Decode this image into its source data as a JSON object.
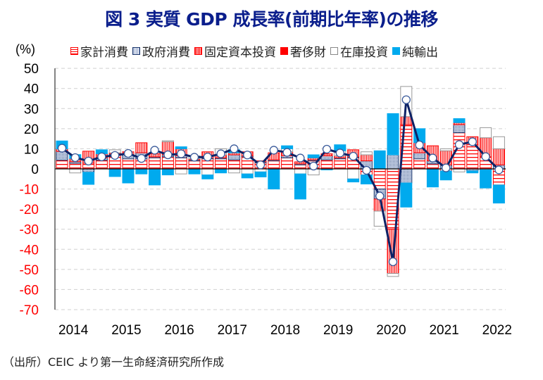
{
  "title": "図 3  実質 GDP 成長率(前期比年率)の推移",
  "source_note": "（出所）CEIC より第一生命経済研究所作成",
  "chart_data": {
    "type": "bar",
    "subtype": "stacked-bar-with-line",
    "title": "図 3  実質 GDP 成長率(前期比年率)の推移",
    "ylabel": "(%)",
    "xlabel": "",
    "ylim": [
      -70,
      50
    ],
    "yticks": [
      50,
      40,
      30,
      20,
      10,
      0,
      -10,
      -20,
      -30,
      -40,
      -50,
      -60,
      -70
    ],
    "negative_tick_color": "#ff0000",
    "grid": "horizontal dashed",
    "legend_position": "top",
    "x_tick_labels": [
      "2014",
      "2015",
      "2016",
      "2017",
      "2018",
      "2019",
      "2020",
      "2021",
      "2022"
    ],
    "categories": [
      "2014Q1",
      "2014Q2",
      "2014Q3",
      "2014Q4",
      "2015Q1",
      "2015Q2",
      "2015Q3",
      "2015Q4",
      "2016Q1",
      "2016Q2",
      "2016Q3",
      "2016Q4",
      "2017Q1",
      "2017Q2",
      "2017Q3",
      "2017Q4",
      "2018Q1",
      "2018Q2",
      "2018Q3",
      "2018Q4",
      "2019Q1",
      "2019Q2",
      "2019Q3",
      "2019Q4",
      "2020Q1",
      "2020Q2",
      "2020Q3",
      "2020Q4",
      "2021Q1",
      "2021Q2",
      "2021Q3",
      "2021Q4",
      "2022Q1",
      "2022Q2"
    ],
    "series": [
      {
        "name": "家計消費",
        "key": "hh",
        "values": [
          4.3,
          2.8,
          2.8,
          4.3,
          7.0,
          5.0,
          5.0,
          5.5,
          6.0,
          5.5,
          4.0,
          5.0,
          5.0,
          4.5,
          6.0,
          3.0,
          4.0,
          5.5,
          2.0,
          4.0,
          4.5,
          5.0,
          5.5,
          -3.0,
          -10.0,
          -30.0,
          22.0,
          5.0,
          2.5,
          -1.0,
          18.0,
          12.0,
          6.0,
          -8.0
        ]
      },
      {
        "name": "政府消費",
        "key": "gov",
        "values": [
          4.4,
          0.8,
          -1.7,
          1.2,
          0.5,
          2.0,
          3.0,
          0.5,
          1.0,
          1.0,
          0.5,
          0.5,
          0.5,
          2.5,
          0.5,
          0.5,
          0.5,
          1.0,
          0.5,
          0.5,
          2.0,
          0.5,
          0.5,
          4.0,
          -5.0,
          7.0,
          -7.0,
          3.0,
          1.5,
          2.0,
          4.0,
          -1.0,
          -0.5,
          2.0
        ]
      },
      {
        "name": "固定資本投資",
        "key": "fix",
        "values": [
          1.2,
          1.5,
          6.0,
          2.0,
          0.5,
          1.5,
          5.0,
          1.5,
          6.5,
          3.5,
          0.5,
          3.0,
          1.5,
          1.0,
          2.0,
          0.5,
          3.5,
          2.0,
          1.0,
          1.0,
          1.0,
          1.0,
          3.5,
          3.0,
          -6.0,
          -22.0,
          4.0,
          5.0,
          7.5,
          7.0,
          1.0,
          4.0,
          9.5,
          8.0
        ]
      },
      {
        "name": "奢侈財",
        "key": "lux",
        "values": [
          0,
          0,
          0,
          0,
          0,
          0,
          0,
          0,
          0,
          0,
          0,
          0,
          0,
          0,
          0,
          0,
          0,
          0,
          0,
          0,
          0,
          0,
          0,
          0,
          0,
          0,
          0,
          0,
          0,
          0,
          0,
          0,
          0,
          0
        ]
      },
      {
        "name": "在庫投資",
        "key": "inv",
        "values": [
          0,
          -2.0,
          0,
          0,
          1.5,
          0,
          0,
          0,
          0.5,
          -2.5,
          1.5,
          -3.0,
          3.0,
          -2.0,
          -2.5,
          -1.5,
          0,
          1.5,
          -2.5,
          -3.0,
          0,
          2.5,
          -5.0,
          1.5,
          -7.5,
          -1.5,
          15.0,
          0,
          0,
          1.0,
          -1.5,
          0,
          5.0,
          6.0
        ]
      },
      {
        "name": "純輸出",
        "key": "net",
        "values": [
          4.0,
          2.0,
          -6.0,
          2.0,
          -3.8,
          -7.0,
          -2.5,
          -8.0,
          -3.0,
          1.0,
          -2.5,
          -2.0,
          -2.0,
          1.5,
          -2.0,
          -2.5,
          -10.0,
          1.5,
          -12.5,
          1.5,
          -0.5,
          3.0,
          -1.5,
          -4.5,
          9.0,
          20.5,
          -12.0,
          7.0,
          -9.0,
          -4.5,
          2.0,
          -1.0,
          -9.0,
          -9.0
        ]
      }
    ],
    "line": {
      "name": "実質GDP成長率",
      "values": [
        10.3,
        5.6,
        3.9,
        6.0,
        6.7,
        7.7,
        5.2,
        9.3,
        7.0,
        7.5,
        5.8,
        5.9,
        7.5,
        10.0,
        6.9,
        2.0,
        9.3,
        8.2,
        5.4,
        1.4,
        9.8,
        7.9,
        6.3,
        -0.7,
        -13.5,
        -46.2,
        34.4,
        11.9,
        5.4,
        0.5,
        12.1,
        13.5,
        6.1,
        -0.5
      ]
    }
  },
  "legend": {
    "unit": "(%)",
    "items": [
      {
        "label": "家計消費",
        "key": "hh"
      },
      {
        "label": "政府消費",
        "key": "gov"
      },
      {
        "label": "固定資本投資",
        "key": "fix"
      },
      {
        "label": "奢侈財",
        "key": "lux"
      },
      {
        "label": "在庫投資",
        "key": "inv"
      },
      {
        "label": "純輸出",
        "key": "net"
      }
    ]
  },
  "colors": {
    "title": "#0a1e8c",
    "line": "#0d2266",
    "household": "#ff0000",
    "government": "#1f3a6e",
    "fixed_investment": "#ff0000",
    "luxury": "#ff0000",
    "inventory": "#888888",
    "net_exports": "#00aaee"
  }
}
